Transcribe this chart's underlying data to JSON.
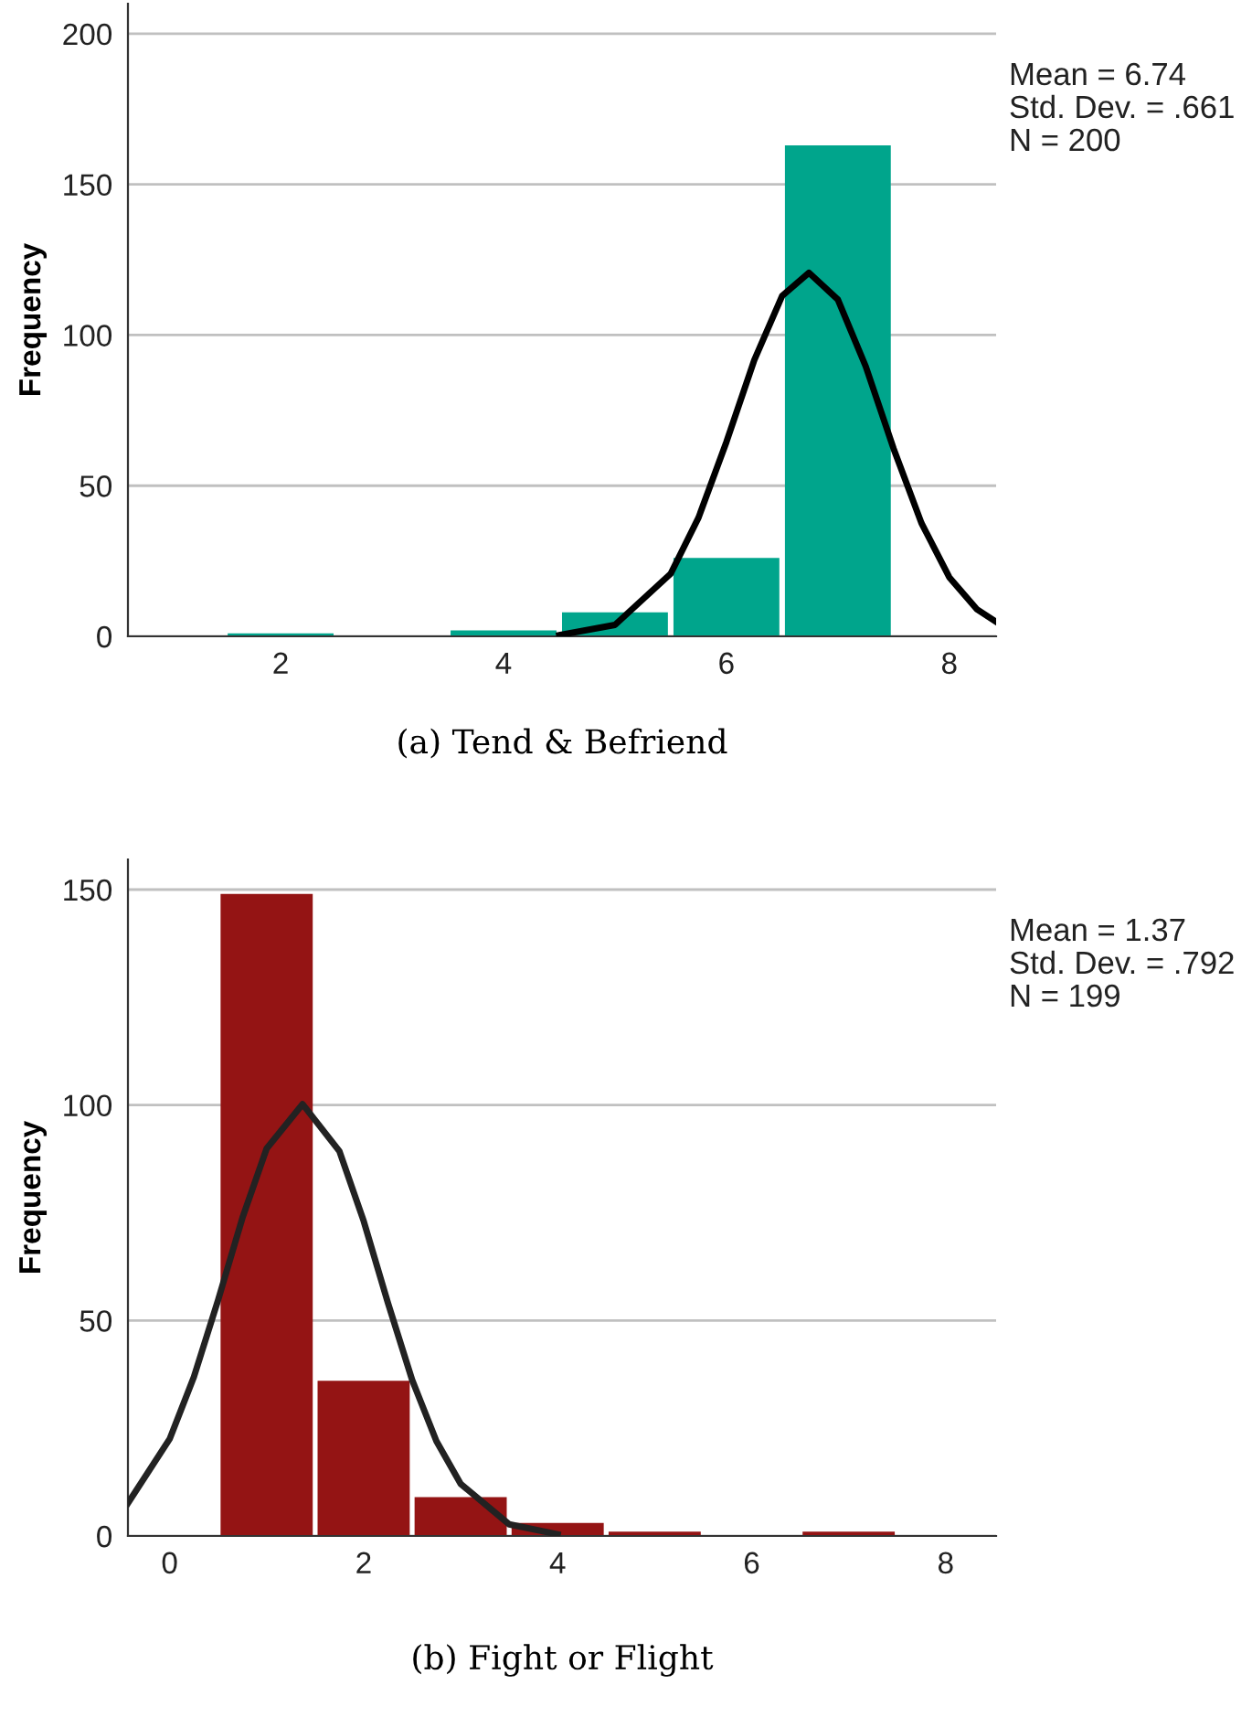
{
  "chart_data": [
    {
      "type": "histogram",
      "title": "(a) Tend & Befriend",
      "ylabel": "Frequency",
      "bins": [
        1.5,
        2.5,
        3.5,
        4.5,
        5.5,
        6.5,
        7.5
      ],
      "values": [
        1,
        0,
        2,
        8,
        26,
        163
      ],
      "color": "#00a58c",
      "series": [
        {
          "type": "line",
          "color": "#000000",
          "x": [
            4.5,
            5,
            5.5,
            5.75,
            6,
            6.25,
            6.5,
            6.74,
            7,
            7.25,
            7.5,
            7.75,
            8,
            8.25,
            8.42
          ],
          "values": [
            0.4,
            3.8,
            20.8,
            39.4,
            64.5,
            91.7,
            113,
            120.7,
            111.8,
            89.6,
            62.3,
            37.6,
            19.6,
            8.9,
            4.8
          ]
        }
      ],
      "xlim": [
        0.63,
        8.42
      ],
      "xticks": [
        2,
        4,
        6,
        8
      ],
      "ylim": [
        0,
        210
      ],
      "yticks": [
        0,
        50,
        100,
        150,
        200
      ],
      "grid": "y",
      "annotations": [
        "Mean = 6.74",
        "Std. Dev. = .661",
        "N = 200"
      ]
    },
    {
      "type": "histogram",
      "title": "(b) Fight or Flight",
      "ylabel": "Frequency",
      "bins": [
        0.5,
        1.5,
        2.5,
        3.5,
        4.5,
        5.5,
        6.5,
        7.5
      ],
      "values": [
        149,
        36,
        9,
        3,
        1,
        0,
        1
      ],
      "color": "#941414",
      "series": [
        {
          "type": "line",
          "color": "#222222",
          "x": [
            -0.43,
            0,
            0.25,
            0.5,
            0.75,
            1,
            1.37,
            1.75,
            2,
            2.25,
            2.5,
            2.75,
            3,
            3.5,
            4
          ],
          "values": [
            7.6,
            22.5,
            36.9,
            54.8,
            73.8,
            89.9,
            100.2,
            89.3,
            73.1,
            54.1,
            36.2,
            22,
            12.1,
            2.7,
            0.4
          ]
        }
      ],
      "xlim": [
        -0.43,
        8.52
      ],
      "xticks": [
        0,
        2,
        4,
        6,
        8
      ],
      "ylim": [
        0,
        157
      ],
      "yticks": [
        0,
        50,
        100,
        150
      ],
      "grid": "y",
      "annotations": [
        "Mean = 1.37",
        "Std. Dev. = .792",
        "N = 199"
      ]
    }
  ]
}
